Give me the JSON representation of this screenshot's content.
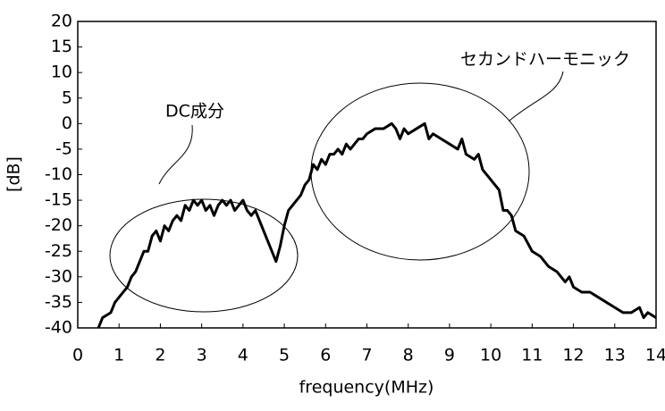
{
  "chart_data": {
    "type": "line",
    "x_label": "frequency(MHz)",
    "y_label": "[dB]",
    "annotations": [
      "DC成分",
      "セカンドハーモニック"
    ],
    "xlim": [
      0,
      14
    ],
    "xticks": [
      0,
      1,
      2,
      3,
      4,
      5,
      6,
      7,
      8,
      9,
      10,
      11,
      12,
      13,
      14
    ],
    "ylim": [
      -40,
      20
    ],
    "yticks": [
      -40,
      -35,
      -30,
      -25,
      -20,
      -15,
      -10,
      -5,
      0,
      5,
      10,
      15,
      20
    ],
    "grid": false,
    "series": [
      {
        "color": "#000000",
        "x": [
          0.5,
          0.6,
          0.8,
          0.9,
          1.0,
          1.1,
          1.2,
          1.3,
          1.4,
          1.5,
          1.6,
          1.7,
          1.8,
          1.9,
          2.0,
          2.1,
          2.2,
          2.3,
          2.4,
          2.5,
          2.6,
          2.7,
          2.8,
          2.9,
          3.0,
          3.1,
          3.2,
          3.3,
          3.4,
          3.5,
          3.6,
          3.7,
          3.8,
          3.9,
          4.0,
          4.1,
          4.2,
          4.3,
          4.4,
          4.5,
          4.6,
          4.7,
          4.8,
          4.9,
          5.0,
          5.1,
          5.2,
          5.3,
          5.4,
          5.5,
          5.6,
          5.7,
          5.8,
          5.9,
          6.0,
          6.1,
          6.2,
          6.3,
          6.4,
          6.5,
          6.6,
          6.7,
          6.8,
          6.9,
          7.0,
          7.2,
          7.4,
          7.6,
          7.7,
          7.8,
          7.9,
          8.0,
          8.2,
          8.4,
          8.5,
          8.6,
          8.8,
          9.0,
          9.2,
          9.3,
          9.4,
          9.6,
          9.7,
          9.8,
          10.0,
          10.2,
          10.3,
          10.4,
          10.5,
          10.6,
          10.8,
          11.0,
          11.2,
          11.4,
          11.6,
          11.8,
          11.9,
          12.0,
          12.2,
          12.4,
          12.6,
          12.8,
          13.0,
          13.2,
          13.4,
          13.6,
          13.7,
          13.8,
          14.0
        ],
        "values": [
          -40,
          -38,
          -37,
          -35,
          -34,
          -33,
          -32,
          -30,
          -29,
          -27,
          -25,
          -25,
          -22,
          -21,
          -23,
          -20,
          -21,
          -19,
          -18,
          -19,
          -16,
          -17,
          -15,
          -16,
          -15,
          -17,
          -16,
          -18,
          -16,
          -15,
          -16,
          -15,
          -17,
          -16,
          -15,
          -17,
          -18,
          -17,
          -19,
          -21,
          -23,
          -25,
          -27,
          -24,
          -20,
          -17,
          -16,
          -15,
          -14,
          -12,
          -11,
          -8,
          -9,
          -7,
          -8,
          -6,
          -6,
          -5,
          -6,
          -4,
          -5,
          -4,
          -3,
          -3,
          -2,
          -1,
          -1,
          0,
          -1,
          -3,
          -1,
          -2,
          -1,
          0,
          -3,
          -2,
          -3,
          -4,
          -5,
          -3,
          -6,
          -7,
          -6,
          -9,
          -11,
          -13,
          -17,
          -17,
          -18,
          -21,
          -22,
          -25,
          -26,
          -28,
          -29,
          -31,
          -30,
          -32,
          -33,
          -33,
          -34,
          -35,
          -36,
          -37,
          -37,
          -36,
          -38,
          -37,
          -38
        ]
      }
    ]
  }
}
